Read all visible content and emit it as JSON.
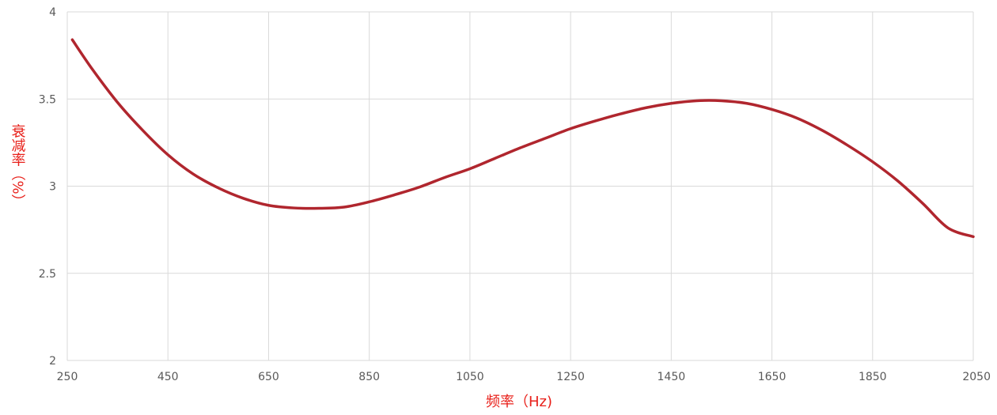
{
  "chart_data": {
    "type": "line",
    "title": "",
    "xlabel": "频率（Hz)",
    "ylabel": "衰减率（%）",
    "xlim": [
      250,
      2050
    ],
    "ylim": [
      2,
      4
    ],
    "x_ticks": [
      "250",
      "450",
      "650",
      "850",
      "1050",
      "1250",
      "1450",
      "1650",
      "1850",
      "2050"
    ],
    "y_ticks": [
      "4",
      "3.5",
      "3",
      "2.5",
      "2"
    ],
    "grid": true,
    "legend": "none",
    "colors": {
      "line": "#b0262e",
      "axis_label": "#e8201a",
      "grid": "#d9d9d9",
      "tick": "#595959"
    },
    "series": [
      {
        "x": [
          260,
          300,
          350,
          400,
          450,
          500,
          550,
          600,
          650,
          700,
          750,
          800,
          850,
          900,
          950,
          1000,
          1050,
          1100,
          1150,
          1200,
          1250,
          1300,
          1350,
          1400,
          1450,
          1500,
          1550,
          1600,
          1650,
          1700,
          1750,
          1800,
          1850,
          1900,
          1950,
          2000,
          2050
        ],
        "y": [
          3.84,
          3.67,
          3.48,
          3.32,
          3.18,
          3.07,
          2.99,
          2.93,
          2.89,
          2.875,
          2.873,
          2.88,
          2.91,
          2.95,
          2.995,
          3.05,
          3.1,
          3.16,
          3.22,
          3.275,
          3.33,
          3.375,
          3.415,
          3.45,
          3.475,
          3.49,
          3.49,
          3.475,
          3.44,
          3.39,
          3.32,
          3.235,
          3.14,
          3.03,
          2.9,
          2.76,
          2.71
        ]
      }
    ]
  }
}
